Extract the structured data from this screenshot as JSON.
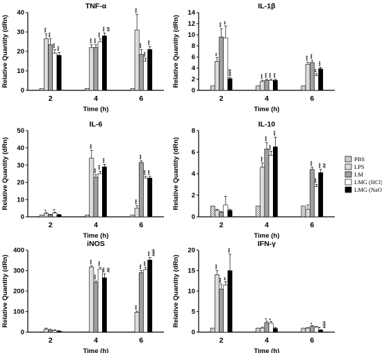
{
  "legend": {
    "entries": [
      {
        "label": "PBS",
        "fill": "#ffffff",
        "hatch": true
      },
      {
        "label": "LPS",
        "fill": "#dcdcdc",
        "hatch": false
      },
      {
        "label": "LM",
        "fill": "#a0a0a0",
        "hatch": false
      },
      {
        "label": "LMG (HCl)",
        "fill": "#ffffff",
        "hatch": false
      },
      {
        "label": "LMG (NaOH)",
        "fill": "#000000",
        "hatch": false
      }
    ]
  },
  "chart_data": [
    {
      "type": "bar",
      "title": "TNF-α",
      "xlabel": "Time (h)",
      "ylabel": "Relative Quantity (dRn)",
      "categories": [
        "2",
        "4",
        "6"
      ],
      "ylim": [
        0,
        40
      ],
      "yticks": [
        "0",
        "10",
        "20",
        "30",
        "40"
      ],
      "series": [
        {
          "name": "PBS",
          "values": [
            1,
            1,
            1
          ],
          "errors": [
            0,
            0,
            0
          ]
        },
        {
          "name": "LPS",
          "values": [
            26.5,
            22,
            31
          ],
          "errors": [
            2.5,
            1.5,
            8
          ]
        },
        {
          "name": "LM",
          "values": [
            23.5,
            22,
            18.5
          ],
          "errors": [
            3,
            1.5,
            2.5
          ]
        },
        {
          "name": "LMG (HCl)",
          "values": [
            19,
            25,
            15
          ],
          "errors": [
            2,
            1.5,
            1.5
          ]
        },
        {
          "name": "LMG (NaOH)",
          "values": [
            18,
            28,
            21
          ],
          "errors": [
            1.5,
            1.5,
            1.5
          ]
        }
      ],
      "annotations": [
        [
          "",
          "***",
          "***",
          "***",
          "***"
        ],
        [
          "",
          "***",
          "***",
          "***\n*",
          "***\n##"
        ],
        [
          "",
          "***",
          "***",
          "***",
          "***"
        ]
      ]
    },
    {
      "type": "bar",
      "title": "IL-1β",
      "xlabel": "Time (h)",
      "ylabel": "Relative Quantity (dRn)",
      "categories": [
        "2",
        "4",
        "6"
      ],
      "ylim": [
        0,
        14
      ],
      "yticks": [
        "0",
        "2",
        "4",
        "6",
        "8",
        "10",
        "12",
        "14"
      ],
      "series": [
        {
          "name": "PBS",
          "values": [
            0.8,
            0.8,
            0.8
          ],
          "errors": [
            0,
            0,
            0
          ]
        },
        {
          "name": "LPS",
          "values": [
            5.2,
            1.6,
            4.7
          ],
          "errors": [
            0.7,
            0.2,
            0.4
          ]
        },
        {
          "name": "LM",
          "values": [
            9.6,
            1.8,
            5.0
          ],
          "errors": [
            1.5,
            0.2,
            0.4
          ]
        },
        {
          "name": "LMG (HCl)",
          "values": [
            9.4,
            1.8,
            2.7
          ],
          "errors": [
            2.2,
            0.2,
            0.3
          ]
        },
        {
          "name": "LMG (NaOH)",
          "values": [
            2.1,
            1.8,
            3.8
          ],
          "errors": [
            0.2,
            0.2,
            0.3
          ]
        }
      ],
      "annotations": [
        [
          "",
          "**",
          "***",
          "**",
          "###"
        ],
        [
          "",
          "***",
          "***",
          "***",
          "***"
        ],
        [
          "",
          "***",
          "***",
          "**\n##",
          "***"
        ]
      ]
    },
    {
      "type": "bar",
      "title": "IL-6",
      "xlabel": "Time (h)",
      "ylabel": "Relative Quantity (dRn)",
      "categories": [
        "2",
        "4",
        "6"
      ],
      "ylim": [
        0,
        50
      ],
      "yticks": [
        "0",
        "10",
        "20",
        "30",
        "40",
        "50"
      ],
      "series": [
        {
          "name": "PBS",
          "values": [
            1,
            1,
            1
          ],
          "errors": [
            0,
            0,
            0
          ]
        },
        {
          "name": "LPS",
          "values": [
            2,
            34,
            5
          ],
          "errors": [
            0.5,
            4.5,
            1.5
          ]
        },
        {
          "name": "LM",
          "values": [
            1.2,
            23,
            31.5
          ],
          "errors": [
            0.3,
            1.5,
            1
          ]
        },
        {
          "name": "LMG (HCl)",
          "values": [
            2.2,
            25,
            22.5
          ],
          "errors": [
            0.5,
            1.5,
            1
          ]
        },
        {
          "name": "LMG (NaOH)",
          "values": [
            1.2,
            29,
            22.5
          ],
          "errors": [
            0.2,
            1.5,
            1
          ]
        }
      ],
      "annotations": [
        [
          "",
          "*",
          "",
          "*",
          ""
        ],
        [
          "",
          "***",
          "***",
          "***",
          "***"
        ],
        [
          "",
          "***",
          "***",
          "***",
          "***"
        ]
      ]
    },
    {
      "type": "bar",
      "title": "IL-10",
      "xlabel": "Time (h)",
      "ylabel": "Relative Quantity (dRn)",
      "categories": [
        "2",
        "4",
        "6"
      ],
      "ylim": [
        0,
        8
      ],
      "yticks": [
        "0",
        "2",
        "4",
        "6",
        "8"
      ],
      "series": [
        {
          "name": "PBS",
          "values": [
            1,
            1,
            1
          ],
          "errors": [
            0,
            0,
            0
          ]
        },
        {
          "name": "LPS",
          "values": [
            0.6,
            4.6,
            0.7
          ],
          "errors": [
            0.1,
            0.4,
            0.4
          ]
        },
        {
          "name": "LM",
          "values": [
            0.4,
            6.3,
            4.4
          ],
          "errors": [
            0.1,
            0.6,
            0.2
          ]
        },
        {
          "name": "LMG (HCl)",
          "values": [
            1.1,
            5.7,
            2.8
          ],
          "errors": [
            0.8,
            0.4,
            0.2
          ]
        },
        {
          "name": "LMG (NaOH)",
          "values": [
            0.6,
            6.5,
            4.1
          ],
          "errors": [
            0.1,
            0.9,
            0.3
          ]
        }
      ],
      "annotations": [
        [
          "",
          "",
          "",
          "",
          ""
        ],
        [
          "",
          "***",
          "***",
          "***",
          "***"
        ],
        [
          "",
          "",
          "***",
          "***",
          "***\n##"
        ]
      ]
    },
    {
      "type": "bar",
      "title": "iNOS",
      "xlabel": "Time (h)",
      "ylabel": "Relative Quantity (dRn)",
      "categories": [
        "2",
        "4",
        "6"
      ],
      "ylim": [
        0,
        400
      ],
      "yticks": [
        "0",
        "100",
        "200",
        "300",
        "400"
      ],
      "series": [
        {
          "name": "PBS",
          "values": [
            1,
            1,
            1
          ],
          "errors": [
            0,
            0,
            0
          ]
        },
        {
          "name": "LPS",
          "values": [
            15,
            318,
            97
          ],
          "errors": [
            5,
            5,
            5
          ]
        },
        {
          "name": "LM",
          "values": [
            10,
            243,
            290
          ],
          "errors": [
            4,
            7,
            10
          ]
        },
        {
          "name": "LMG (HCl)",
          "values": [
            8,
            308,
            305
          ],
          "errors": [
            3,
            8,
            10
          ]
        },
        {
          "name": "LMG (NaOH)",
          "values": [
            5,
            265,
            352
          ],
          "errors": [
            2,
            20,
            12
          ]
        }
      ],
      "annotations": [
        [
          "",
          "",
          "",
          "",
          ""
        ],
        [
          "",
          "***",
          "***",
          "***",
          "***\n##"
        ],
        [
          "",
          "***",
          "***",
          "***",
          "***\n###"
        ]
      ]
    },
    {
      "type": "bar",
      "title": "IFN-γ",
      "xlabel": "Time (h)",
      "ylabel": "Relative Quantity (dRn)",
      "categories": [
        "2",
        "4",
        "6"
      ],
      "ylim": [
        0,
        20
      ],
      "yticks": [
        "0",
        "5",
        "10",
        "15",
        "20"
      ],
      "series": [
        {
          "name": "PBS",
          "values": [
            1,
            1,
            1
          ],
          "errors": [
            0,
            0,
            0
          ]
        },
        {
          "name": "LPS",
          "values": [
            14,
            1,
            1
          ],
          "errors": [
            1,
            0.2,
            0.1
          ]
        },
        {
          "name": "LM",
          "values": [
            10.5,
            2.3,
            1.4
          ],
          "errors": [
            1.2,
            0.4,
            0.2
          ]
        },
        {
          "name": "LMG (HCl)",
          "values": [
            11.5,
            2.2,
            1.2
          ],
          "errors": [
            0.8,
            0.4,
            0.2
          ]
        },
        {
          "name": "LMG (NaOH)",
          "values": [
            15,
            0.9,
            0.5
          ],
          "errors": [
            4,
            0.2,
            0.1
          ]
        }
      ],
      "annotations": [
        [
          "",
          "***",
          "***",
          "**",
          "***"
        ],
        [
          "",
          "",
          "*",
          "*",
          ""
        ],
        [
          "",
          "",
          "*",
          "",
          "*\n###"
        ]
      ]
    }
  ]
}
